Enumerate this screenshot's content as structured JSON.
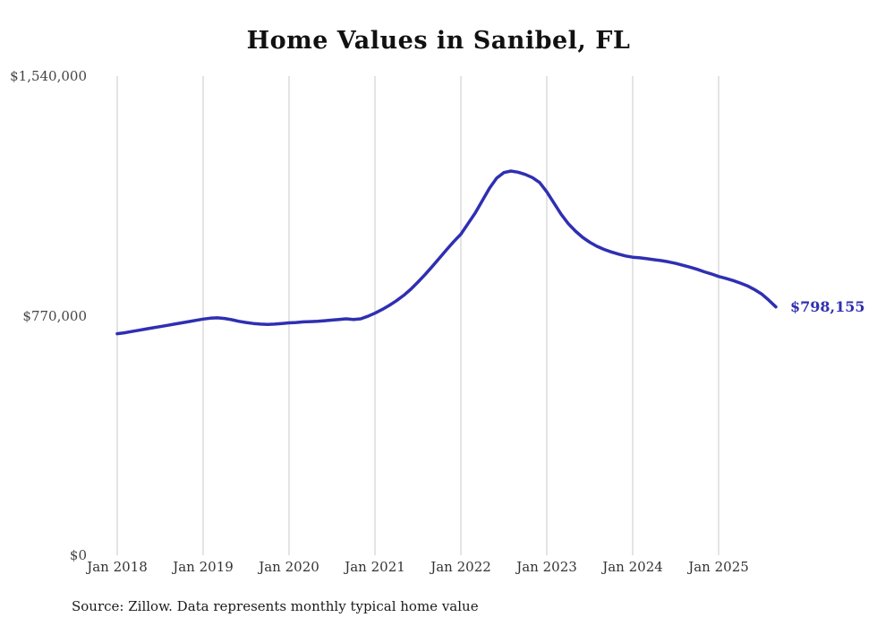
{
  "title": "Home Values in Sanibel, FL",
  "source": "Source: Zillow. Data represents monthly typical home value",
  "colors": {
    "line": "#2f2fb2",
    "grid": "#c8c8c8",
    "end_label": "#2f2fb2"
  },
  "chart_data": {
    "type": "line",
    "title": "Home Values in Sanibel, FL",
    "ylim": [
      0,
      1540000
    ],
    "y_ticks": [
      0,
      770000,
      1540000
    ],
    "y_tick_labels": [
      "$0",
      "$770,000",
      "$1,540,000"
    ],
    "x_tick_labels": [
      "Jan 2018",
      "Jan 2019",
      "Jan 2020",
      "Jan 2021",
      "Jan 2022",
      "Jan 2023",
      "Jan 2024",
      "Jan 2025"
    ],
    "grid": "vertical-only",
    "legend": "none",
    "annotation": {
      "text": "$798,155",
      "value": 798155
    },
    "x": [
      "2018-01",
      "2018-02",
      "2018-03",
      "2018-04",
      "2018-05",
      "2018-06",
      "2018-07",
      "2018-08",
      "2018-09",
      "2018-10",
      "2018-11",
      "2018-12",
      "2019-01",
      "2019-02",
      "2019-03",
      "2019-04",
      "2019-05",
      "2019-06",
      "2019-07",
      "2019-08",
      "2019-09",
      "2019-10",
      "2019-11",
      "2019-12",
      "2020-01",
      "2020-02",
      "2020-03",
      "2020-04",
      "2020-05",
      "2020-06",
      "2020-07",
      "2020-08",
      "2020-09",
      "2020-10",
      "2020-11",
      "2020-12",
      "2021-01",
      "2021-02",
      "2021-03",
      "2021-04",
      "2021-05",
      "2021-06",
      "2021-07",
      "2021-08",
      "2021-09",
      "2021-10",
      "2021-11",
      "2021-12",
      "2022-01",
      "2022-02",
      "2022-03",
      "2022-04",
      "2022-05",
      "2022-06",
      "2022-07",
      "2022-08",
      "2022-09",
      "2022-10",
      "2022-11",
      "2022-12",
      "2023-01",
      "2023-02",
      "2023-03",
      "2023-04",
      "2023-05",
      "2023-06",
      "2023-07",
      "2023-08",
      "2023-09",
      "2023-10",
      "2023-11",
      "2023-12",
      "2024-01",
      "2024-02",
      "2024-03",
      "2024-04",
      "2024-05",
      "2024-06",
      "2024-07",
      "2024-08",
      "2024-09",
      "2024-10",
      "2024-11",
      "2024-12",
      "2025-01",
      "2025-02",
      "2025-03",
      "2025-04",
      "2025-05",
      "2025-06",
      "2025-07",
      "2025-08",
      "2025-09"
    ],
    "values": [
      712000,
      715000,
      719000,
      723000,
      727000,
      731000,
      735000,
      739000,
      743000,
      747000,
      751000,
      755000,
      759000,
      762000,
      763000,
      761000,
      757000,
      752000,
      748000,
      745000,
      743000,
      742000,
      743000,
      745000,
      747000,
      748000,
      750000,
      751000,
      752000,
      754000,
      756000,
      758000,
      760000,
      758000,
      760000,
      768000,
      778000,
      790000,
      803000,
      818000,
      835000,
      855000,
      878000,
      902000,
      928000,
      955000,
      982000,
      1008000,
      1032000,
      1066000,
      1100000,
      1140000,
      1180000,
      1212000,
      1230000,
      1235000,
      1231000,
      1224000,
      1214000,
      1198000,
      1168000,
      1132000,
      1096000,
      1066000,
      1042000,
      1022000,
      1006000,
      993000,
      983000,
      975000,
      968000,
      962000,
      958000,
      956000,
      953000,
      950000,
      947000,
      943000,
      938000,
      932000,
      926000,
      919000,
      911000,
      904000,
      896000,
      890000,
      883000,
      875000,
      866000,
      854000,
      840000,
      820000,
      798155
    ]
  }
}
